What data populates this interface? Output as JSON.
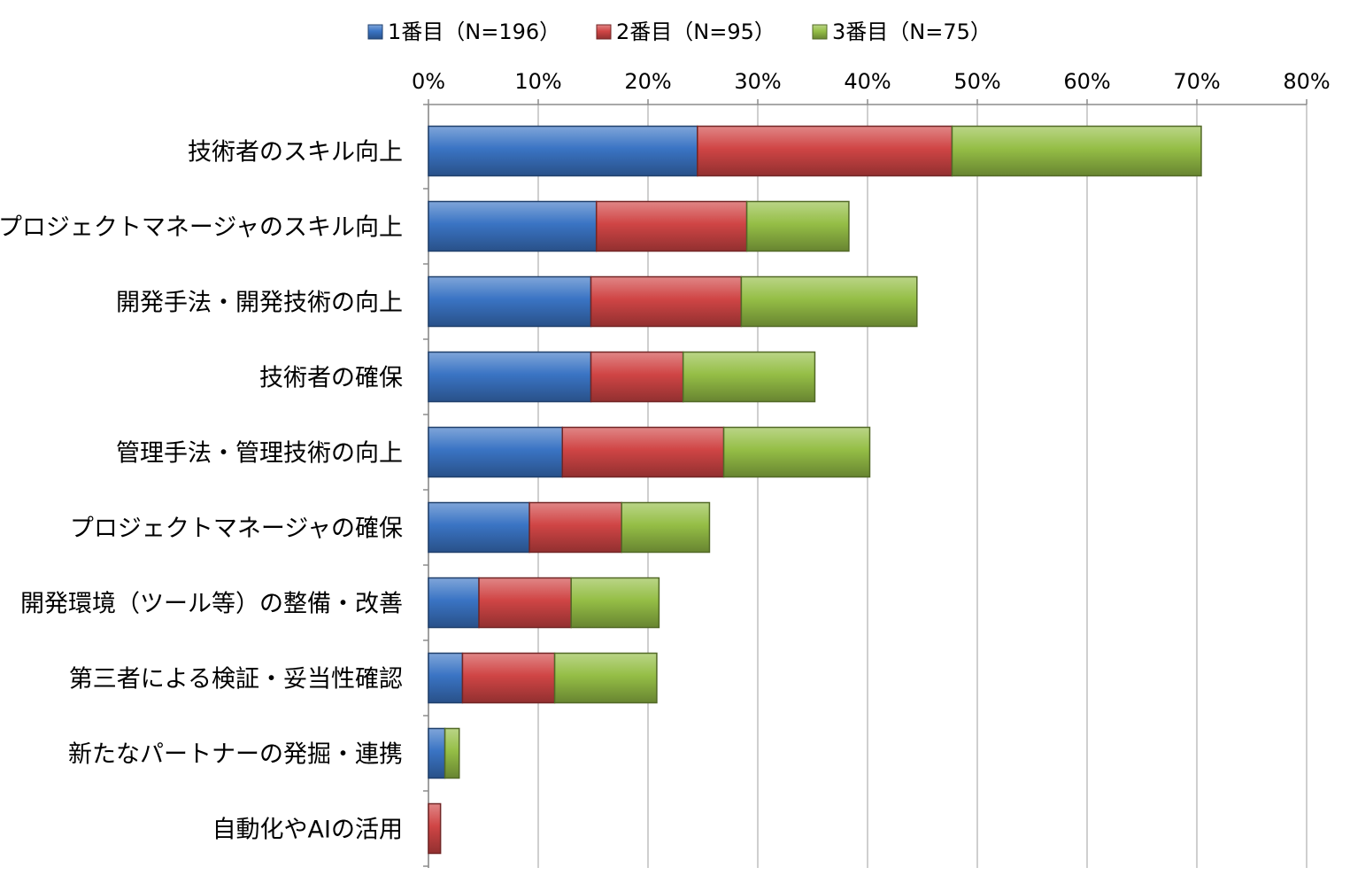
{
  "chart_data": {
    "type": "bar",
    "orientation": "horizontal",
    "stacked": true,
    "categories": [
      "技術者のスキル向上",
      "プロジェクトマネージャのスキル向上",
      "開発手法・開発技術の向上",
      "技術者の確保",
      "管理手法・管理技術の向上",
      "プロジェクトマネージャの確保",
      "開発環境（ツール等）の整備・改善",
      "第三者による検証・妥当性確認",
      "新たなパートナーの発掘・連携",
      "自動化やAIの活用"
    ],
    "series": [
      {
        "name": "1番目（N=196）",
        "color": "#3A74C4",
        "values": [
          24.5,
          15.3,
          14.8,
          14.8,
          12.2,
          9.2,
          4.6,
          3.1,
          1.5,
          0.0
        ]
      },
      {
        "name": "2番目（N=95）",
        "color": "#D04545",
        "values": [
          23.2,
          13.7,
          13.7,
          8.4,
          14.7,
          8.4,
          8.4,
          8.4,
          0.0,
          1.1
        ]
      },
      {
        "name": "3番目（N=75）",
        "color": "#95BE46",
        "values": [
          22.7,
          9.3,
          16.0,
          12.0,
          13.3,
          8.0,
          8.0,
          9.3,
          1.3,
          0.0
        ]
      }
    ],
    "xlim": [
      0,
      80
    ],
    "xticks": [
      "0%",
      "10%",
      "20%",
      "30%",
      "40%",
      "50%",
      "60%",
      "70%",
      "80%"
    ],
    "xtick_values": [
      0,
      10,
      20,
      30,
      40,
      50,
      60,
      70,
      80
    ],
    "axis_position": "top",
    "legend_position": "top",
    "grid": true
  }
}
